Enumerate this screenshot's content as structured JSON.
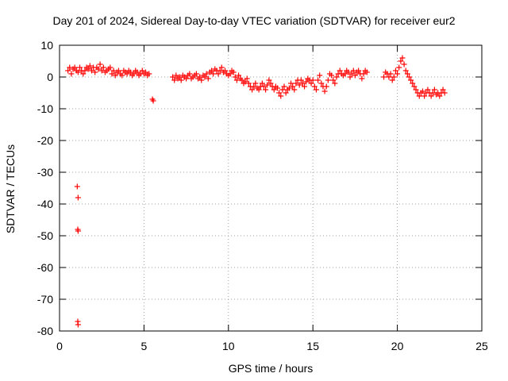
{
  "chart_data": {
    "type": "scatter",
    "title": "Day 201 of 2024, Sidereal Day-to-day VTEC variation (SDTVAR) for receiver eur2",
    "xlabel": "GPS time / hours",
    "ylabel": "SDTVAR / TECUs",
    "xlim": [
      0,
      25
    ],
    "ylim": [
      -80,
      10
    ],
    "xticks": [
      0,
      5,
      10,
      15,
      20,
      25
    ],
    "yticks": [
      -80,
      -70,
      -60,
      -50,
      -40,
      -30,
      -20,
      -10,
      0,
      10
    ],
    "grid": true,
    "marker": "+",
    "color": "#ff0000",
    "series": [
      {
        "name": "SDTVAR",
        "x": [
          0.5,
          0.6,
          0.7,
          0.8,
          0.9,
          1.0,
          1.1,
          1.2,
          1.3,
          1.4,
          1.5,
          1.6,
          1.7,
          1.8,
          1.9,
          2.0,
          2.1,
          2.2,
          2.3,
          2.4,
          2.5,
          2.6,
          2.7,
          2.8,
          2.9,
          3.0,
          3.1,
          3.2,
          3.3,
          3.4,
          3.5,
          3.6,
          3.7,
          3.8,
          3.9,
          4.0,
          4.1,
          4.2,
          4.3,
          4.4,
          4.5,
          4.6,
          4.7,
          4.8,
          4.9,
          5.0,
          5.1,
          5.2,
          5.3,
          5.5,
          5.55,
          6.7,
          6.8,
          6.9,
          7.0,
          7.1,
          7.2,
          7.3,
          7.4,
          7.5,
          7.6,
          7.7,
          7.8,
          7.9,
          8.0,
          8.1,
          8.2,
          8.3,
          8.4,
          8.5,
          8.6,
          8.7,
          8.8,
          8.9,
          9.0,
          9.1,
          9.2,
          9.3,
          9.4,
          9.5,
          9.6,
          9.7,
          9.8,
          9.9,
          10.0,
          10.1,
          10.2,
          10.3,
          10.4,
          10.5,
          10.6,
          10.7,
          10.8,
          10.9,
          11.0,
          11.1,
          11.2,
          11.3,
          11.4,
          11.5,
          11.6,
          11.7,
          11.8,
          11.9,
          12.0,
          12.1,
          12.2,
          12.3,
          12.4,
          12.5,
          12.6,
          12.7,
          12.8,
          12.9,
          13.0,
          13.1,
          13.2,
          13.3,
          13.4,
          13.5,
          13.6,
          13.7,
          13.8,
          13.9,
          14.0,
          14.1,
          14.2,
          14.3,
          14.4,
          14.5,
          14.6,
          14.7,
          14.8,
          14.9,
          15.0,
          15.1,
          15.2,
          15.3,
          15.4,
          15.5,
          15.6,
          15.7,
          15.8,
          15.9,
          16.0,
          16.1,
          16.2,
          16.3,
          16.4,
          16.5,
          16.6,
          16.7,
          16.8,
          16.9,
          17.0,
          17.1,
          17.2,
          17.3,
          17.4,
          17.5,
          17.6,
          17.7,
          17.8,
          17.9,
          18.0,
          18.1,
          18.2,
          19.2,
          19.3,
          19.4,
          19.5,
          19.6,
          19.7,
          19.8,
          19.9,
          20.0,
          20.1,
          20.2,
          20.3,
          20.4,
          20.5,
          20.6,
          20.7,
          20.8,
          20.9,
          21.0,
          21.1,
          21.2,
          21.3,
          21.4,
          21.5,
          21.6,
          21.7,
          21.8,
          21.9,
          22.0,
          22.1,
          22.2,
          22.3,
          22.4,
          22.5,
          22.6,
          22.7,
          22.8,
          1.05,
          1.1,
          1.08,
          1.1,
          1.08,
          1.1
        ],
        "y": [
          2,
          3,
          1,
          2.5,
          3,
          2,
          1.5,
          3,
          2,
          1,
          2,
          3,
          2.5,
          3.5,
          2,
          3,
          1.5,
          3,
          2.5,
          4,
          2,
          3,
          1.5,
          2,
          2.5,
          3,
          1,
          2,
          0.5,
          1.5,
          2,
          1,
          0.5,
          2,
          1.5,
          1,
          2,
          1.5,
          0.5,
          1,
          2,
          1.5,
          0.5,
          1,
          2,
          1,
          1.5,
          0.5,
          1,
          -7,
          -7.5,
          0,
          -1,
          0.5,
          -0.5,
          0,
          -1,
          0.5,
          0,
          -0.5,
          0.5,
          1,
          -0.5,
          0,
          0.5,
          1,
          -0.5,
          0,
          -1,
          0.5,
          0,
          1,
          -0.5,
          1.5,
          2,
          1,
          2.5,
          2,
          1,
          2,
          3,
          1.5,
          2,
          1,
          0.5,
          1,
          2,
          1.5,
          0,
          -1,
          0.5,
          -0.5,
          -1,
          -2,
          -1.5,
          -0.5,
          -2,
          -3,
          -4,
          -3,
          -2,
          -3.5,
          -4,
          -3,
          -2,
          -3,
          -4,
          -2.5,
          -1,
          -2,
          -3,
          -4,
          -3,
          -3.5,
          -5,
          -6,
          -4,
          -3,
          -5,
          -4,
          -3.5,
          -2,
          -3,
          -4,
          -2,
          -1,
          -2.5,
          -1,
          -2,
          -3,
          -1.5,
          -0.5,
          -1,
          -2,
          -1,
          -3,
          -4,
          -1,
          0.5,
          -2,
          -3,
          -4.5,
          -3,
          -1,
          1,
          0.5,
          -1,
          -2,
          0,
          1,
          2,
          1,
          0.5,
          1,
          2,
          1.5,
          0,
          1,
          2,
          0.5,
          1.5,
          2,
          1,
          -0.5,
          1,
          2,
          1.5,
          0,
          1.5,
          1,
          0,
          1,
          -1,
          0,
          2,
          1,
          3,
          5,
          6,
          4,
          2,
          1,
          0,
          -1,
          -2,
          -3,
          -4,
          -5,
          -6,
          -5,
          -4.5,
          -6,
          -5,
          -4,
          -5,
          -6,
          -5,
          -4,
          -5.5,
          -5,
          -6,
          -5,
          -4,
          -5,
          -34.5,
          -38,
          -48,
          -48.5,
          -77,
          -78
        ]
      }
    ]
  }
}
